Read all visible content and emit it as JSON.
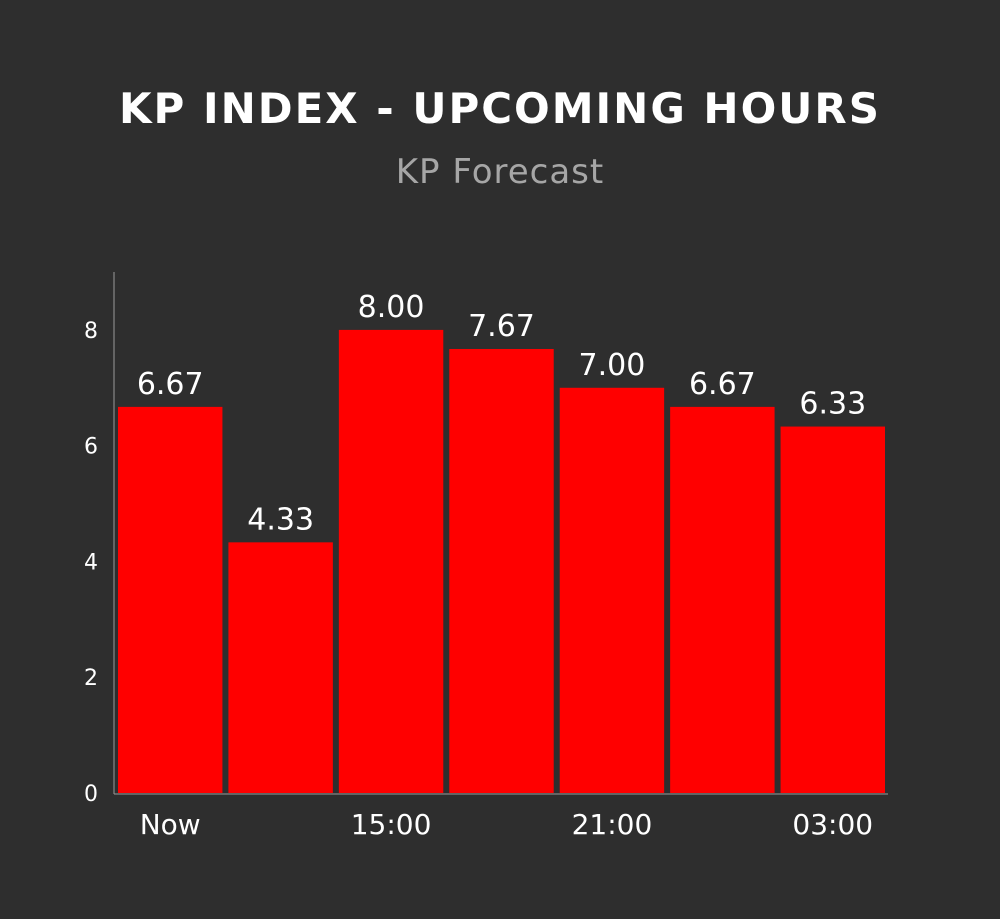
{
  "chart_data": {
    "type": "bar",
    "title": "KP INDEX - UPCOMING HOURS",
    "subtitle": "KP Forecast",
    "categories": [
      "Now",
      "",
      "15:00",
      "",
      "21:00",
      "",
      "03:00"
    ],
    "values": [
      6.67,
      4.33,
      8.0,
      7.67,
      7.0,
      6.67,
      6.33
    ],
    "value_labels": [
      "6.67",
      "4.33",
      "8.00",
      "7.67",
      "7.00",
      "6.67",
      "6.33"
    ],
    "y_ticks": [
      "0",
      "2",
      "4",
      "6",
      "8"
    ],
    "ylim": [
      0,
      9
    ],
    "xlabel": "",
    "ylabel": "",
    "grid": false,
    "bar_color": "#ff0000",
    "background_color": "#2e2e2e"
  }
}
